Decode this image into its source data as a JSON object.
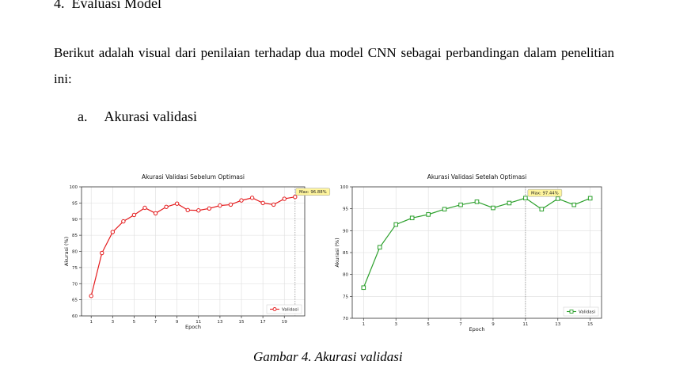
{
  "section": {
    "number": "4.",
    "title": "Evaluasi Model"
  },
  "paragraph": "Berikut adalah visual dari penilaian terhadap dua model CNN sebagai perbandingan dalam penelitian ini:",
  "subsection": {
    "letter": "a.",
    "title": "Akurasi validasi"
  },
  "caption": "Gambar 4. Akurasi validasi",
  "chart_data": [
    {
      "type": "line",
      "title": "Akurasi Validasi Sebelum Optimasi",
      "xlabel": "Epoch",
      "ylabel": "Akurasi (%)",
      "x": [
        1,
        2,
        3,
        4,
        5,
        6,
        7,
        8,
        9,
        10,
        11,
        12,
        13,
        14,
        15,
        16,
        17,
        18,
        19,
        20
      ],
      "xticks": [
        1,
        3,
        5,
        7,
        9,
        11,
        13,
        15,
        17,
        19
      ],
      "xlim": [
        0.1,
        20.9
      ],
      "ylim": [
        60,
        100
      ],
      "yticks": [
        60,
        65,
        70,
        75,
        80,
        85,
        90,
        95,
        100
      ],
      "grid": true,
      "legend": "bottom-right",
      "color": "#e41a1c",
      "marker": "circle",
      "series": [
        {
          "name": "Validasi",
          "values": [
            66.2,
            79.5,
            86.0,
            89.3,
            91.3,
            93.5,
            91.8,
            93.8,
            94.8,
            92.8,
            92.7,
            93.3,
            94.2,
            94.5,
            95.8,
            96.6,
            95.0,
            94.5,
            96.3,
            96.88
          ]
        }
      ],
      "annotation": {
        "text": "Max: 96.88%",
        "x": 20,
        "y": 96.88
      }
    },
    {
      "type": "line",
      "title": "Akurasi Validasi Setelah Optimasi",
      "xlabel": "Epoch",
      "ylabel": "Akurasi (%)",
      "x": [
        1,
        2,
        3,
        4,
        5,
        6,
        7,
        8,
        9,
        10,
        11,
        12,
        13,
        14,
        15
      ],
      "xticks": [
        1,
        3,
        5,
        7,
        9,
        11,
        13,
        15
      ],
      "xlim": [
        0.3,
        15.7
      ],
      "ylim": [
        70,
        100
      ],
      "yticks": [
        70,
        75,
        80,
        85,
        90,
        95,
        100
      ],
      "grid": true,
      "legend": "bottom-right",
      "color": "#2ca02c",
      "marker": "square",
      "series": [
        {
          "name": "Validasi",
          "values": [
            77.0,
            86.2,
            91.4,
            92.9,
            93.7,
            94.9,
            95.9,
            96.6,
            95.2,
            96.3,
            97.44,
            94.9,
            97.3,
            95.9,
            97.4
          ]
        }
      ],
      "annotation": {
        "text": "Max: 97.44%",
        "x": 11,
        "y": 97.44
      }
    }
  ]
}
